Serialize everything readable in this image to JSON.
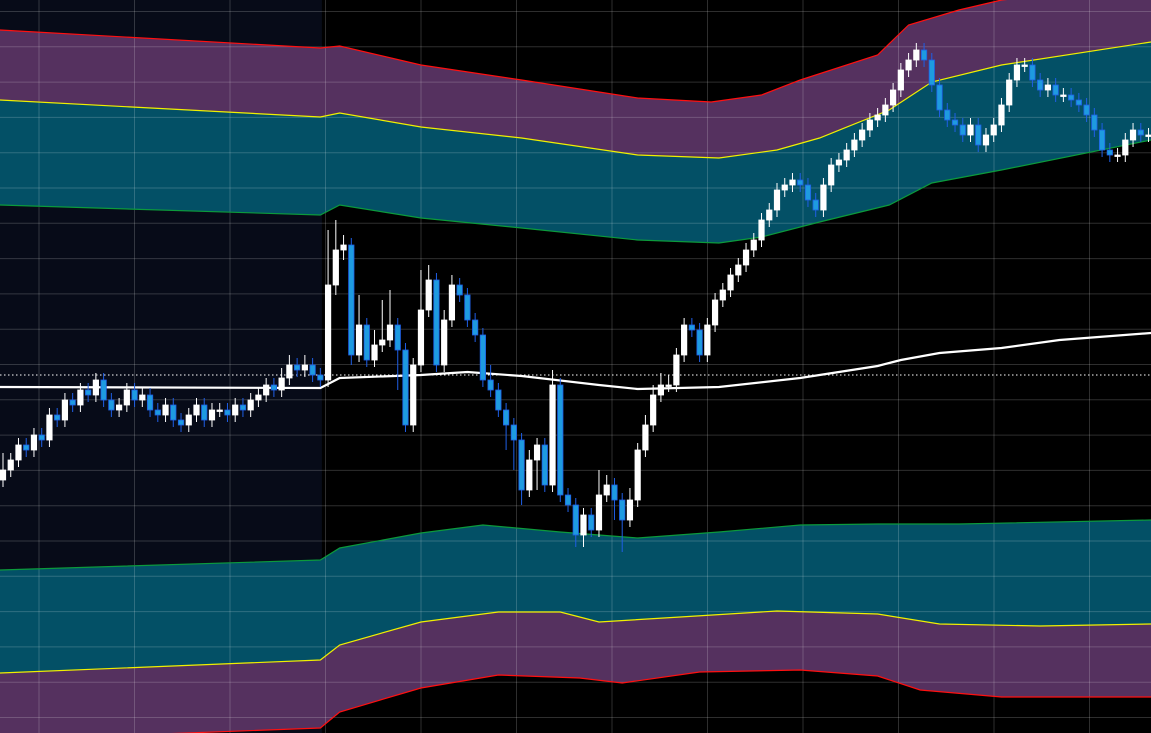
{
  "chart_data": {
    "type": "candlestick",
    "title": "",
    "xlabel": "",
    "ylabel": "",
    "ylim": [
      26.7,
      100
    ],
    "grid": true,
    "legend": "none",
    "colors": {
      "background": "#000000",
      "session_shade": "#070b18",
      "grid": "#ffffff",
      "up_candle": "#ffffff",
      "down_candle_fill": "#1e9be0",
      "down_candle_border": "#1f5fe6",
      "outer_band_fill": "#55315f",
      "inner_band_fill": "#035066",
      "outer_band_line": "#ff1010",
      "mid_band_line": "#f0f000",
      "inner_band_line": "#0c9a3c",
      "moving_average": "#ffffff",
      "last_price_line": "#ffffff"
    },
    "shaded_session_end_index": 41.2,
    "last_price": 62.5,
    "candles_ohlc": [
      [
        52,
        54.7,
        51.3,
        53
      ],
      [
        53,
        54.7,
        52.3,
        54
      ],
      [
        54,
        56.2,
        53.3,
        55.5
      ],
      [
        55.5,
        56.2,
        54.3,
        55
      ],
      [
        55,
        57.2,
        54.3,
        56.5
      ],
      [
        56.5,
        57.2,
        55.3,
        56
      ],
      [
        56,
        59.2,
        55.3,
        58.5
      ],
      [
        58.5,
        59.2,
        57.3,
        58
      ],
      [
        58,
        60.7,
        57.3,
        60
      ],
      [
        60,
        60.7,
        58.8,
        59.5
      ],
      [
        59.5,
        61.7,
        58.8,
        61
      ],
      [
        61,
        61.7,
        59.8,
        60.5
      ],
      [
        60.5,
        62.7,
        59.8,
        62
      ],
      [
        62,
        62.7,
        59.3,
        60
      ],
      [
        60,
        60.7,
        58.3,
        59
      ],
      [
        59,
        60.2,
        58.3,
        59.5
      ],
      [
        59.5,
        61.7,
        58.8,
        61
      ],
      [
        61,
        61.7,
        59.3,
        60
      ],
      [
        60,
        61.2,
        59.3,
        60.5
      ],
      [
        60.5,
        61.2,
        58.3,
        59
      ],
      [
        59,
        59.7,
        57.8,
        58.5
      ],
      [
        58.5,
        60.2,
        57.8,
        59.5
      ],
      [
        59.5,
        60.2,
        57.3,
        58
      ],
      [
        58,
        58.7,
        56.8,
        57.5
      ],
      [
        57.5,
        59.2,
        56.8,
        58.5
      ],
      [
        58.5,
        60.2,
        57.8,
        59.5
      ],
      [
        59.5,
        60.2,
        57.3,
        58
      ],
      [
        58,
        59.7,
        57.3,
        59
      ],
      [
        59,
        59.7,
        58.3,
        59
      ],
      [
        59,
        59.7,
        57.8,
        58.5
      ],
      [
        58.5,
        60.2,
        57.8,
        59.5
      ],
      [
        59.5,
        60.2,
        58.3,
        59
      ],
      [
        59,
        60.7,
        58.3,
        60
      ],
      [
        60,
        61.2,
        59.3,
        60.5
      ],
      [
        60.5,
        62.2,
        59.8,
        61.5
      ],
      [
        61.5,
        62.2,
        60.3,
        61
      ],
      [
        61,
        63.2,
        60.3,
        62.2
      ],
      [
        62.2,
        64.5,
        61.5,
        63.5
      ],
      [
        63.5,
        64.2,
        62.3,
        63
      ],
      [
        63,
        64.5,
        62.3,
        63.5
      ],
      [
        63.5,
        64.2,
        61.8,
        62.5
      ],
      [
        62.5,
        63.2,
        61.3,
        62
      ],
      [
        62,
        77,
        61.3,
        71.5
      ],
      [
        71.5,
        78,
        70.5,
        75
      ],
      [
        75,
        76.5,
        74,
        75.5
      ],
      [
        75.5,
        76.2,
        63.5,
        64.5
      ],
      [
        64.5,
        70.5,
        63.8,
        67.5
      ],
      [
        67.5,
        68.2,
        63.3,
        64
      ],
      [
        64,
        67,
        63.3,
        65.5
      ],
      [
        65.5,
        70,
        64.8,
        66
      ],
      [
        66,
        71,
        65.3,
        67.5
      ],
      [
        67.5,
        68.2,
        61,
        65
      ],
      [
        65,
        65.7,
        56.8,
        57.5
      ],
      [
        57.5,
        64.2,
        56.8,
        63.5
      ],
      [
        63.5,
        73,
        62.8,
        69
      ],
      [
        69,
        73.5,
        68.3,
        72
      ],
      [
        72,
        72.7,
        62.8,
        63.5
      ],
      [
        63.5,
        69,
        62.8,
        68
      ],
      [
        68,
        72.5,
        67.3,
        71.5
      ],
      [
        71.5,
        72.2,
        69.8,
        70.5
      ],
      [
        70.5,
        71.2,
        67.3,
        68
      ],
      [
        68,
        68.7,
        65.8,
        66.5
      ],
      [
        66.5,
        67.2,
        61.3,
        62
      ],
      [
        62,
        63.5,
        60.3,
        61
      ],
      [
        61,
        61.7,
        58.3,
        59
      ],
      [
        59,
        59.7,
        55,
        57.5
      ],
      [
        57.5,
        58.2,
        53,
        56
      ],
      [
        56,
        56.7,
        49.5,
        51
      ],
      [
        51,
        55,
        50.3,
        54
      ],
      [
        54,
        56.2,
        51,
        55.5
      ],
      [
        55.5,
        56.2,
        50.8,
        51.5
      ],
      [
        51.5,
        63,
        50.8,
        61.5
      ],
      [
        61.5,
        62.2,
        49.8,
        50.5
      ],
      [
        50.5,
        51.2,
        48.8,
        49.5
      ],
      [
        49.5,
        50.2,
        45.3,
        46.5
      ],
      [
        46.5,
        49.2,
        45.3,
        48.5
      ],
      [
        48.5,
        49.2,
        46.3,
        47
      ],
      [
        47,
        53,
        46.3,
        50.5
      ],
      [
        50.5,
        52.5,
        49.8,
        51.5
      ],
      [
        51.5,
        52.2,
        48,
        50
      ],
      [
        50,
        50.7,
        44.8,
        48
      ],
      [
        48,
        51.2,
        47.3,
        50
      ],
      [
        50,
        55.7,
        49.3,
        55
      ],
      [
        55,
        58.5,
        54.3,
        57.5
      ],
      [
        57.5,
        61.5,
        56.8,
        60.5
      ],
      [
        60.5,
        62.7,
        59.8,
        61.5
      ],
      [
        61.5,
        62.5,
        60.8,
        61.5
      ],
      [
        61.5,
        65.2,
        60.8,
        64.5
      ],
      [
        64.5,
        68.2,
        63.8,
        67.5
      ],
      [
        67.5,
        68.2,
        66.3,
        67
      ],
      [
        67,
        67.7,
        63.8,
        64.5
      ],
      [
        64.5,
        68.2,
        63.8,
        67.5
      ],
      [
        67.5,
        70.7,
        66.8,
        70
      ],
      [
        70,
        71.7,
        69.3,
        71
      ],
      [
        71,
        73.2,
        70.3,
        72.5
      ],
      [
        72.5,
        74.2,
        71.8,
        73.5
      ],
      [
        73.5,
        75.7,
        72.8,
        75
      ],
      [
        75,
        76.7,
        74.3,
        76
      ],
      [
        76,
        78.7,
        75.3,
        78
      ],
      [
        78,
        79.7,
        77.3,
        79
      ],
      [
        79,
        81.7,
        78.3,
        81
      ],
      [
        81,
        82.2,
        80.3,
        81.5
      ],
      [
        81.5,
        82.7,
        80.8,
        82
      ],
      [
        82,
        82.7,
        80.8,
        81.5
      ],
      [
        81.5,
        82.2,
        79.3,
        80
      ],
      [
        80,
        80.7,
        78.3,
        79
      ],
      [
        79,
        82.2,
        78.3,
        81.5
      ],
      [
        81.5,
        84.2,
        80.8,
        83.5
      ],
      [
        83.5,
        84.7,
        82.8,
        84
      ],
      [
        84,
        85.7,
        83.3,
        85
      ],
      [
        85,
        86.7,
        84.3,
        86
      ],
      [
        86,
        87.7,
        85.3,
        87
      ],
      [
        87,
        88.7,
        86.3,
        88
      ],
      [
        88,
        89.2,
        87.3,
        88.5
      ],
      [
        88.5,
        90.2,
        87.8,
        89.5
      ],
      [
        89.5,
        91.7,
        88.8,
        91
      ],
      [
        91,
        93.7,
        90.3,
        93
      ],
      [
        93,
        94.7,
        92.3,
        94
      ],
      [
        94,
        95.7,
        93.3,
        95
      ],
      [
        95,
        95.7,
        93.3,
        94
      ],
      [
        94,
        94.7,
        90.8,
        91.5
      ],
      [
        91.5,
        92.2,
        88.3,
        89
      ],
      [
        89,
        89.7,
        87.3,
        88
      ],
      [
        88,
        88.7,
        86.8,
        87.5
      ],
      [
        87.5,
        88.2,
        85.8,
        86.5
      ],
      [
        86.5,
        88.2,
        85.8,
        87.5
      ],
      [
        87.5,
        88.2,
        84.8,
        85.5
      ],
      [
        85.5,
        87.2,
        84.8,
        86.5
      ],
      [
        86.5,
        88.2,
        85.8,
        87.5
      ],
      [
        87.5,
        90.2,
        86.8,
        89.5
      ],
      [
        89.5,
        92.7,
        88.8,
        92
      ],
      [
        92,
        94.2,
        91.3,
        93.5
      ],
      [
        93.5,
        94.2,
        92.8,
        93.5
      ],
      [
        93.5,
        94.2,
        91.3,
        92
      ],
      [
        92,
        92.7,
        90.3,
        91
      ],
      [
        91,
        92.2,
        90.3,
        91.5
      ],
      [
        91.5,
        92.2,
        89.8,
        90.5
      ],
      [
        90.5,
        91.2,
        89.8,
        90.5
      ],
      [
        90.5,
        91.2,
        89.3,
        90
      ],
      [
        90,
        90.7,
        88.8,
        89.5
      ],
      [
        89.5,
        90.2,
        87.8,
        88.5
      ],
      [
        88.5,
        89.2,
        86.3,
        87
      ],
      [
        87,
        87.7,
        84.3,
        85
      ],
      [
        85,
        85.7,
        83.8,
        84.5
      ],
      [
        84.5,
        85.2,
        83.8,
        84.5
      ],
      [
        84.5,
        86.7,
        83.8,
        86
      ],
      [
        86,
        87.7,
        85.3,
        87
      ],
      [
        87,
        87.7,
        85.8,
        86.5
      ],
      [
        86.5,
        87.2,
        85.8,
        86.5
      ]
    ],
    "bands": {
      "upper_outer": [
        [
          0,
          97
        ],
        [
          41,
          95.2
        ],
        [
          43.5,
          95.4
        ],
        [
          54,
          93.5
        ],
        [
          67,
          92
        ],
        [
          82,
          90.2
        ],
        [
          91.5,
          89.8
        ],
        [
          98,
          90.5
        ],
        [
          103,
          92
        ],
        [
          113,
          94.5
        ],
        [
          117,
          97.5
        ],
        [
          123.5,
          99
        ],
        [
          129,
          100
        ],
        [
          148,
          101.5
        ]
      ],
      "upper_mid": [
        [
          0,
          90
        ],
        [
          41,
          88.3
        ],
        [
          43.5,
          88.7
        ],
        [
          54,
          87.3
        ],
        [
          67,
          86.2
        ],
        [
          82,
          84.5
        ],
        [
          92.5,
          84.2
        ],
        [
          100,
          85
        ],
        [
          105.5,
          86.2
        ],
        [
          114.5,
          89
        ],
        [
          120,
          91.8
        ],
        [
          129,
          93.5
        ],
        [
          148,
          95.8
        ]
      ],
      "upper_inner": [
        [
          0,
          79.5
        ],
        [
          41,
          78.5
        ],
        [
          43.5,
          79.5
        ],
        [
          54,
          78.2
        ],
        [
          67,
          77.2
        ],
        [
          82,
          76
        ],
        [
          92.5,
          75.7
        ],
        [
          98,
          76.3
        ],
        [
          105.5,
          77.8
        ],
        [
          114.5,
          79.5
        ],
        [
          120,
          81.7
        ],
        [
          129,
          83
        ],
        [
          148,
          86
        ]
      ],
      "moving_average": [
        [
          0,
          61.3
        ],
        [
          41,
          61.2
        ],
        [
          43.5,
          62.2
        ],
        [
          54,
          62.5
        ],
        [
          60,
          62.8
        ],
        [
          67,
          62.4
        ],
        [
          77,
          61.5
        ],
        [
          82,
          61.1
        ],
        [
          92.5,
          61.3
        ],
        [
          103,
          62.2
        ],
        [
          113,
          63.4
        ],
        [
          116,
          64
        ],
        [
          121,
          64.7
        ],
        [
          129,
          65.2
        ],
        [
          136.5,
          66
        ],
        [
          148,
          66.7
        ]
      ],
      "lower_inner": [
        [
          0,
          43
        ],
        [
          41,
          44
        ],
        [
          43.5,
          45.2
        ],
        [
          54,
          46.7
        ],
        [
          62,
          47.5
        ],
        [
          72,
          46.8
        ],
        [
          82,
          46.2
        ],
        [
          92.5,
          46.8
        ],
        [
          103,
          47.5
        ],
        [
          113,
          47.6
        ],
        [
          123.5,
          47.6
        ],
        [
          148,
          48
        ]
      ],
      "lower_mid": [
        [
          0,
          32.7
        ],
        [
          41,
          34
        ],
        [
          43.5,
          35.5
        ],
        [
          54,
          37.8
        ],
        [
          64,
          38.8
        ],
        [
          72,
          38.8
        ],
        [
          77,
          37.8
        ],
        [
          87.5,
          38.3
        ],
        [
          100,
          38.9
        ],
        [
          113,
          38.6
        ],
        [
          121,
          37.6
        ],
        [
          134,
          37.4
        ],
        [
          148,
          37.6
        ]
      ],
      "lower_outer": [
        [
          0,
          26
        ],
        [
          41,
          27.2
        ],
        [
          43.5,
          28.8
        ],
        [
          54,
          31.2
        ],
        [
          64,
          32.5
        ],
        [
          74.5,
          32.2
        ],
        [
          80,
          31.7
        ],
        [
          90,
          32.8
        ],
        [
          103,
          33
        ],
        [
          113,
          32.4
        ],
        [
          118.5,
          31
        ],
        [
          129,
          30.3
        ],
        [
          148,
          30.3
        ]
      ]
    }
  }
}
